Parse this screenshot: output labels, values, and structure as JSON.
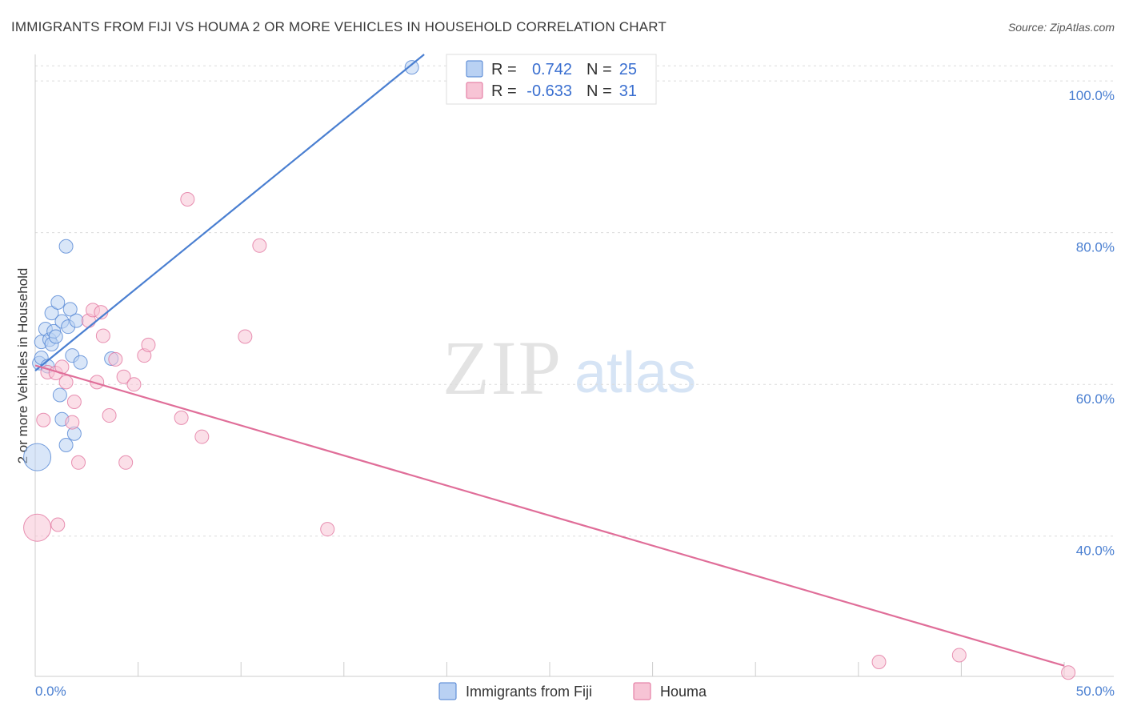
{
  "chart_data": {
    "type": "scatter",
    "title": "IMMIGRANTS FROM FIJI VS HOUMA 2 OR MORE VEHICLES IN HOUSEHOLD CORRELATION CHART",
    "source": "Source: ZipAtlas.com",
    "xlabel": "",
    "ylabel": "2 or more Vehicles in Household",
    "xlim": [
      0,
      50
    ],
    "ylim": [
      21.5,
      103.5
    ],
    "y_ticks": [
      {
        "value": 40,
        "label": "40.0%"
      },
      {
        "value": 60,
        "label": "60.0%"
      },
      {
        "value": 80,
        "label": "80.0%"
      },
      {
        "value": 100,
        "label": "100.0%"
      }
    ],
    "x_tick_values": [
      0,
      5,
      10,
      15,
      20,
      25,
      30,
      35,
      40,
      45,
      50
    ],
    "x_end_labels": {
      "left": "0.0%",
      "right": "50.0%"
    },
    "grid": true,
    "legend_position": "top-center",
    "watermark": {
      "zip": "ZIP",
      "atlas": "atlas"
    },
    "series": [
      {
        "name": "Immigrants from Fiji",
        "color": "#4a7fd1",
        "fill": "#b9d1f3",
        "r_label": "R =",
        "r_value": "0.742",
        "n_label": "N =",
        "n_value": "25",
        "trend": {
          "x0": 0.0,
          "y0": 61.8,
          "x1": 18.9,
          "y1": 103.5
        },
        "points": [
          {
            "x": 0.1,
            "y": 50.4,
            "size": "large"
          },
          {
            "x": 0.2,
            "y": 62.8,
            "size": "normal"
          },
          {
            "x": 0.3,
            "y": 63.5,
            "size": "normal"
          },
          {
            "x": 0.3,
            "y": 65.6,
            "size": "normal"
          },
          {
            "x": 0.5,
            "y": 67.3,
            "size": "normal"
          },
          {
            "x": 0.6,
            "y": 62.4,
            "size": "normal"
          },
          {
            "x": 0.7,
            "y": 65.9,
            "size": "normal"
          },
          {
            "x": 0.8,
            "y": 65.3,
            "size": "normal"
          },
          {
            "x": 0.8,
            "y": 69.4,
            "size": "normal"
          },
          {
            "x": 0.9,
            "y": 67.0,
            "size": "normal"
          },
          {
            "x": 1.0,
            "y": 66.3,
            "size": "normal"
          },
          {
            "x": 1.1,
            "y": 70.8,
            "size": "normal"
          },
          {
            "x": 1.2,
            "y": 58.6,
            "size": "normal"
          },
          {
            "x": 1.3,
            "y": 55.4,
            "size": "normal"
          },
          {
            "x": 1.3,
            "y": 68.3,
            "size": "normal"
          },
          {
            "x": 1.5,
            "y": 78.2,
            "size": "normal"
          },
          {
            "x": 1.5,
            "y": 52.0,
            "size": "normal"
          },
          {
            "x": 1.6,
            "y": 67.6,
            "size": "normal"
          },
          {
            "x": 1.7,
            "y": 69.9,
            "size": "normal"
          },
          {
            "x": 1.8,
            "y": 63.8,
            "size": "normal"
          },
          {
            "x": 1.9,
            "y": 53.5,
            "size": "normal"
          },
          {
            "x": 2.0,
            "y": 68.4,
            "size": "normal"
          },
          {
            "x": 2.2,
            "y": 62.9,
            "size": "normal"
          },
          {
            "x": 3.7,
            "y": 63.4,
            "size": "normal"
          },
          {
            "x": 18.3,
            "y": 101.8,
            "size": "normal"
          }
        ]
      },
      {
        "name": "Houma",
        "color": "#e06e99",
        "fill": "#f7c4d5",
        "r_label": "R =",
        "r_value": "-0.633",
        "n_label": "N =",
        "n_value": "31",
        "trend": {
          "x0": 0.0,
          "y0": 62.5,
          "x1": 50.0,
          "y1": 22.9
        },
        "points": [
          {
            "x": 0.1,
            "y": 41.1,
            "size": "large"
          },
          {
            "x": 0.4,
            "y": 55.3,
            "size": "normal"
          },
          {
            "x": 0.6,
            "y": 61.6,
            "size": "normal"
          },
          {
            "x": 1.0,
            "y": 61.5,
            "size": "normal"
          },
          {
            "x": 1.1,
            "y": 41.5,
            "size": "normal"
          },
          {
            "x": 1.3,
            "y": 62.3,
            "size": "normal"
          },
          {
            "x": 1.5,
            "y": 60.3,
            "size": "normal"
          },
          {
            "x": 1.8,
            "y": 55.0,
            "size": "normal"
          },
          {
            "x": 1.9,
            "y": 57.7,
            "size": "normal"
          },
          {
            "x": 2.1,
            "y": 49.7,
            "size": "normal"
          },
          {
            "x": 2.6,
            "y": 68.4,
            "size": "normal"
          },
          {
            "x": 2.8,
            "y": 69.8,
            "size": "normal"
          },
          {
            "x": 3.0,
            "y": 60.3,
            "size": "normal"
          },
          {
            "x": 3.2,
            "y": 69.5,
            "size": "normal"
          },
          {
            "x": 3.3,
            "y": 66.4,
            "size": "normal"
          },
          {
            "x": 3.6,
            "y": 55.9,
            "size": "normal"
          },
          {
            "x": 3.9,
            "y": 63.3,
            "size": "normal"
          },
          {
            "x": 4.3,
            "y": 61.0,
            "size": "normal"
          },
          {
            "x": 4.4,
            "y": 49.7,
            "size": "normal"
          },
          {
            "x": 4.8,
            "y": 60.0,
            "size": "normal"
          },
          {
            "x": 5.3,
            "y": 63.8,
            "size": "normal"
          },
          {
            "x": 5.5,
            "y": 65.2,
            "size": "normal"
          },
          {
            "x": 7.1,
            "y": 55.6,
            "size": "normal"
          },
          {
            "x": 7.4,
            "y": 84.4,
            "size": "normal"
          },
          {
            "x": 8.1,
            "y": 53.1,
            "size": "normal"
          },
          {
            "x": 10.2,
            "y": 66.3,
            "size": "normal"
          },
          {
            "x": 10.9,
            "y": 78.3,
            "size": "normal"
          },
          {
            "x": 14.2,
            "y": 40.9,
            "size": "normal"
          },
          {
            "x": 41.0,
            "y": 23.4,
            "size": "normal"
          },
          {
            "x": 44.9,
            "y": 24.3,
            "size": "normal"
          },
          {
            "x": 50.2,
            "y": 22.0,
            "size": "normal"
          }
        ]
      }
    ]
  }
}
